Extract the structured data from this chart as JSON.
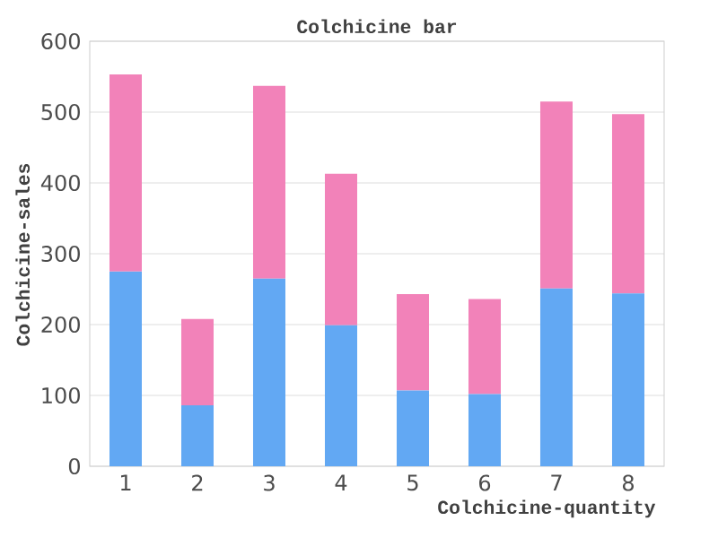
{
  "chart_data": {
    "type": "bar",
    "title": "Colchicine bar",
    "xlabel": "Colchicine-quantity",
    "ylabel": "Colchicine-sales",
    "categories": [
      "1",
      "2",
      "3",
      "4",
      "5",
      "6",
      "7",
      "8"
    ],
    "series": [
      {
        "color": "#62a8f3",
        "values": [
          275,
          86,
          265,
          199,
          107,
          102,
          251,
          244
        ]
      },
      {
        "color": "#f282b9",
        "values": [
          278,
          122,
          272,
          214,
          136,
          134,
          264,
          253
        ]
      }
    ],
    "stacked": true,
    "ylim": [
      0,
      600
    ],
    "yticks": [
      0,
      100,
      200,
      300,
      400,
      500,
      600
    ],
    "grid": "y"
  }
}
